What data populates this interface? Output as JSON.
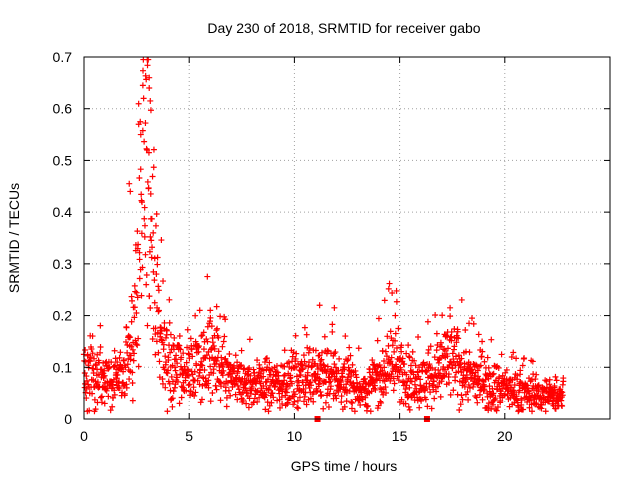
{
  "chart_data": {
    "type": "scatter",
    "title": "Day 230 of 2018, SRMTID for receiver gabo",
    "xlabel": "GPS time / hours",
    "ylabel": "SRMTID / TECUs",
    "xlim": [
      0,
      25
    ],
    "ylim": [
      0,
      0.7
    ],
    "x_ticks": [
      0,
      5,
      10,
      15,
      20
    ],
    "y_ticks": [
      0,
      0.1,
      0.2,
      0.3,
      0.4,
      0.5,
      0.6,
      0.7
    ],
    "y_tick_labels": [
      "0",
      "0.1",
      "0.2",
      "0.3",
      "0.4",
      "0.5",
      "0.6",
      "0.7"
    ],
    "grid": true,
    "marker": "plus",
    "color": "#ff0000",
    "profile": [
      {
        "x": 0.0,
        "y": 0.09
      },
      {
        "x": 0.5,
        "y": 0.085
      },
      {
        "x": 1.0,
        "y": 0.08
      },
      {
        "x": 1.5,
        "y": 0.075
      },
      {
        "x": 2.0,
        "y": 0.09
      },
      {
        "x": 2.3,
        "y": 0.15
      },
      {
        "x": 2.6,
        "y": 0.3
      },
      {
        "x": 2.85,
        "y": 0.45
      },
      {
        "x": 3.1,
        "y": 0.45
      },
      {
        "x": 3.4,
        "y": 0.25
      },
      {
        "x": 3.7,
        "y": 0.14
      },
      {
        "x": 4.2,
        "y": 0.1
      },
      {
        "x": 5.0,
        "y": 0.09
      },
      {
        "x": 6.0,
        "y": 0.12
      },
      {
        "x": 6.5,
        "y": 0.09
      },
      {
        "x": 7.5,
        "y": 0.065
      },
      {
        "x": 9.0,
        "y": 0.07
      },
      {
        "x": 10.0,
        "y": 0.075
      },
      {
        "x": 11.0,
        "y": 0.09
      },
      {
        "x": 12.0,
        "y": 0.075
      },
      {
        "x": 13.5,
        "y": 0.055
      },
      {
        "x": 14.7,
        "y": 0.12
      },
      {
        "x": 15.2,
        "y": 0.08
      },
      {
        "x": 16.0,
        "y": 0.07
      },
      {
        "x": 17.5,
        "y": 0.11
      },
      {
        "x": 18.5,
        "y": 0.08
      },
      {
        "x": 20.0,
        "y": 0.06
      },
      {
        "x": 21.0,
        "y": 0.05
      },
      {
        "x": 22.0,
        "y": 0.045
      },
      {
        "x": 22.8,
        "y": 0.05
      }
    ],
    "noise_spread": 0.35,
    "point_count": 1800,
    "notable_points": [
      {
        "x": 3.1,
        "y": 0.66
      },
      {
        "x": 3.1,
        "y": 0.64
      },
      {
        "x": 3.15,
        "y": 0.615
      },
      {
        "x": 2.6,
        "y": 0.57
      },
      {
        "x": 2.7,
        "y": 0.55
      },
      {
        "x": 3.0,
        "y": 0.52
      },
      {
        "x": 2.15,
        "y": 0.455
      },
      {
        "x": 2.2,
        "y": 0.44
      },
      {
        "x": 11.2,
        "y": 0.22
      },
      {
        "x": 11.9,
        "y": 0.215
      },
      {
        "x": 17.4,
        "y": 0.215
      },
      {
        "x": 18.3,
        "y": 0.185
      },
      {
        "x": 14.8,
        "y": 0.2
      },
      {
        "x": 5.5,
        "y": 0.21
      },
      {
        "x": 6.0,
        "y": 0.21
      }
    ],
    "gap_markers": [
      {
        "x": 11.1,
        "y": 0
      },
      {
        "x": 16.3,
        "y": 0
      }
    ]
  }
}
